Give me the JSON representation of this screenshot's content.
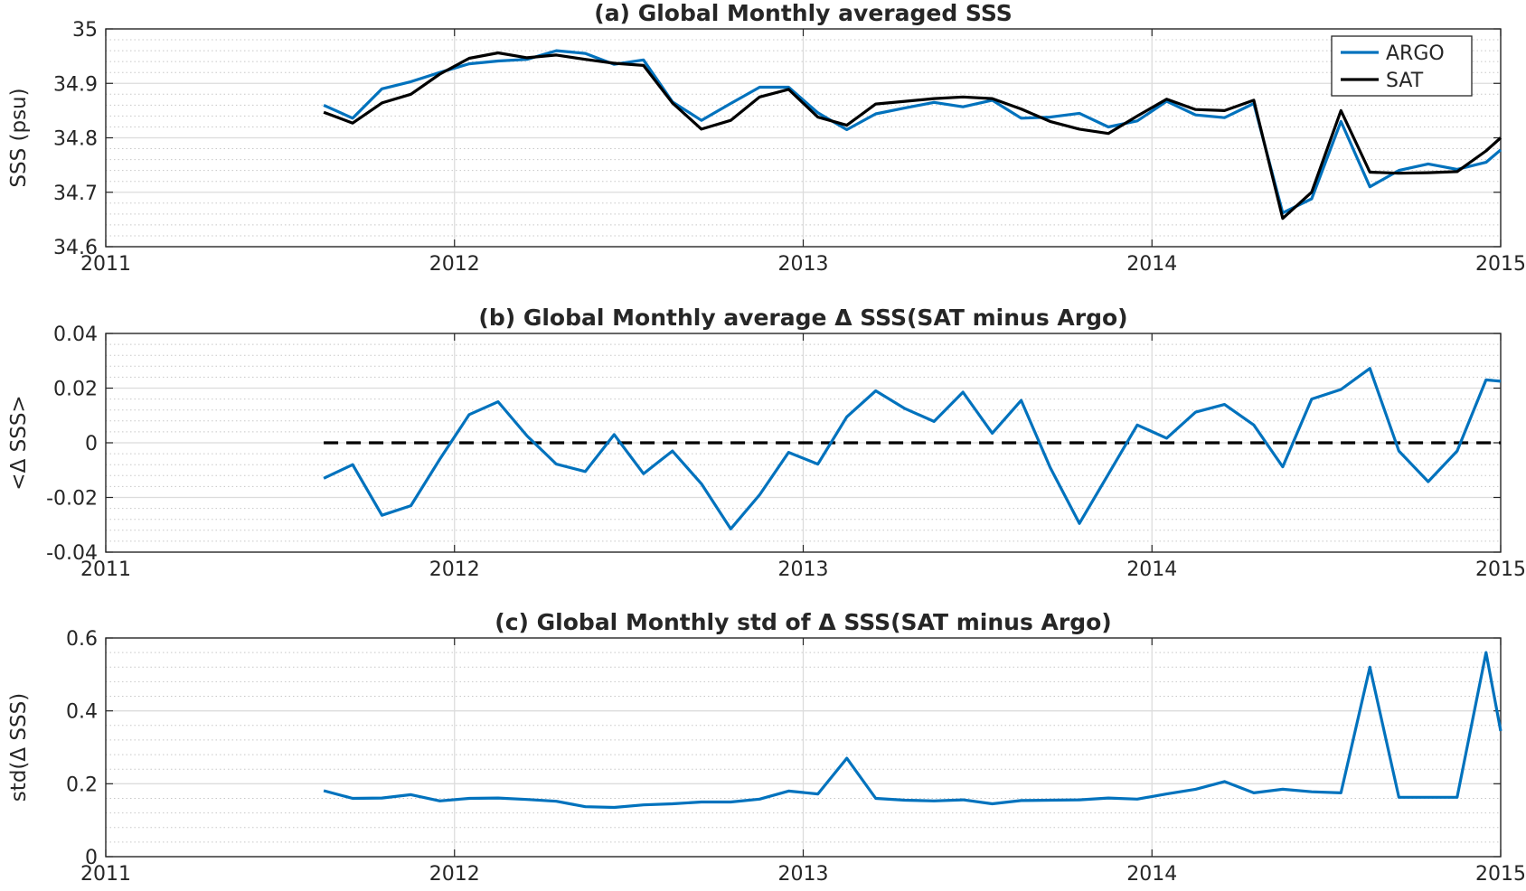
{
  "chart_data": [
    {
      "type": "line",
      "title": "(a) Global Monthly averaged SSS",
      "xlabel": "",
      "ylabel": "SSS (psu)",
      "xlim": [
        2011,
        2015
      ],
      "ylim": [
        34.6,
        35
      ],
      "xticks": [
        2011,
        2012,
        2013,
        2014,
        2015
      ],
      "yticks": [
        34.6,
        34.7,
        34.8,
        34.9,
        35
      ],
      "grid": true,
      "legend": "top-right",
      "series": [
        {
          "name": "ARGO",
          "color": "#0072BD",
          "x": [
            2011.625,
            2011.708,
            2011.792,
            2011.875,
            2011.958,
            2012.042,
            2012.125,
            2012.208,
            2012.292,
            2012.375,
            2012.458,
            2012.542,
            2012.625,
            2012.708,
            2012.792,
            2012.875,
            2012.958,
            2013.042,
            2013.125,
            2013.208,
            2013.292,
            2013.375,
            2013.458,
            2013.542,
            2013.625,
            2013.708,
            2013.792,
            2013.875,
            2013.958,
            2014.042,
            2014.125,
            2014.208,
            2014.292,
            2014.375,
            2014.458,
            2014.542,
            2014.625,
            2014.708,
            2014.792,
            2014.875,
            2014.958,
            2015.0
          ],
          "y": [
            34.86,
            34.836,
            34.89,
            34.903,
            34.92,
            34.936,
            34.941,
            34.944,
            34.96,
            34.955,
            34.935,
            34.943,
            34.866,
            34.832,
            34.863,
            34.893,
            34.893,
            34.846,
            34.815,
            34.844,
            34.855,
            34.865,
            34.857,
            34.869,
            34.836,
            34.838,
            34.845,
            34.82,
            34.831,
            34.867,
            34.842,
            34.837,
            34.863,
            34.662,
            34.688,
            34.83,
            34.71,
            34.74,
            34.752,
            34.742,
            34.755,
            34.778
          ]
        },
        {
          "name": "SAT",
          "color": "#000000",
          "x": [
            2011.625,
            2011.708,
            2011.792,
            2011.875,
            2011.958,
            2012.042,
            2012.125,
            2012.208,
            2012.292,
            2012.375,
            2012.458,
            2012.542,
            2012.625,
            2012.708,
            2012.792,
            2012.875,
            2012.958,
            2013.042,
            2013.125,
            2013.208,
            2013.292,
            2013.375,
            2013.458,
            2013.542,
            2013.625,
            2013.708,
            2013.792,
            2013.875,
            2013.958,
            2014.042,
            2014.125,
            2014.208,
            2014.292,
            2014.375,
            2014.458,
            2014.542,
            2014.625,
            2014.708,
            2014.792,
            2014.875,
            2014.958,
            2015.0
          ],
          "y": [
            34.847,
            34.827,
            34.864,
            34.88,
            34.917,
            34.946,
            34.956,
            34.947,
            34.952,
            34.944,
            34.937,
            34.933,
            34.864,
            34.816,
            34.832,
            34.875,
            34.889,
            34.838,
            34.823,
            34.862,
            34.867,
            34.872,
            34.875,
            34.872,
            34.853,
            34.83,
            34.816,
            34.808,
            34.84,
            34.871,
            34.852,
            34.85,
            34.869,
            34.652,
            34.7,
            34.85,
            34.737,
            34.735,
            34.736,
            34.738,
            34.776,
            34.8
          ]
        }
      ]
    },
    {
      "type": "line",
      "title": "(b) Global Monthly average Δ SSS(SAT minus Argo)",
      "xlabel": "",
      "ylabel": "<Δ SSS>",
      "xlim": [
        2011,
        2015
      ],
      "ylim": [
        -0.04,
        0.04
      ],
      "xticks": [
        2011,
        2012,
        2013,
        2014,
        2015
      ],
      "yticks": [
        -0.04,
        -0.02,
        0,
        0.02,
        0.04
      ],
      "grid": true,
      "zero_line": {
        "y": 0,
        "color": "#000000",
        "style": "dashed",
        "x_start": 2011.625,
        "x_end": 2015
      },
      "series": [
        {
          "color": "#0072BD",
          "x": [
            2011.625,
            2011.708,
            2011.792,
            2011.875,
            2011.958,
            2012.042,
            2012.125,
            2012.208,
            2012.292,
            2012.375,
            2012.458,
            2012.542,
            2012.625,
            2012.708,
            2012.792,
            2012.875,
            2012.958,
            2013.042,
            2013.125,
            2013.208,
            2013.292,
            2013.375,
            2013.458,
            2013.542,
            2013.625,
            2013.708,
            2013.792,
            2013.875,
            2013.958,
            2014.042,
            2014.125,
            2014.208,
            2014.292,
            2014.375,
            2014.458,
            2014.542,
            2014.625,
            2014.708,
            2014.792,
            2014.875,
            2014.958,
            2015.0
          ],
          "y": [
            -0.013,
            -0.008,
            -0.0265,
            -0.023,
            -0.006,
            0.0103,
            0.015,
            0.0025,
            -0.0078,
            -0.0105,
            0.003,
            -0.0113,
            -0.003,
            -0.015,
            -0.0315,
            -0.019,
            -0.0035,
            -0.0078,
            0.0095,
            0.019,
            0.0125,
            0.0078,
            0.0185,
            0.0035,
            0.0155,
            -0.009,
            -0.0295,
            -0.0115,
            0.0065,
            0.0017,
            0.0112,
            0.014,
            0.0065,
            -0.0088,
            0.016,
            0.0195,
            0.0272,
            -0.003,
            -0.0142,
            -0.003,
            0.023,
            0.0225
          ]
        }
      ]
    },
    {
      "type": "line",
      "title": "(c) Global Monthly std of Δ SSS(SAT minus Argo)",
      "xlabel": "",
      "ylabel": "std(Δ SSS)",
      "xlim": [
        2011,
        2015
      ],
      "ylim": [
        0,
        0.6
      ],
      "xticks": [
        2011,
        2012,
        2013,
        2014,
        2015
      ],
      "yticks": [
        0,
        0.2,
        0.4,
        0.6
      ],
      "grid": true,
      "series": [
        {
          "color": "#0072BD",
          "x": [
            2011.625,
            2011.708,
            2011.792,
            2011.875,
            2011.958,
            2012.042,
            2012.125,
            2012.208,
            2012.292,
            2012.375,
            2012.458,
            2012.542,
            2012.625,
            2012.708,
            2012.792,
            2012.875,
            2012.958,
            2013.042,
            2013.125,
            2013.208,
            2013.292,
            2013.375,
            2013.458,
            2013.542,
            2013.625,
            2013.708,
            2013.792,
            2013.875,
            2013.958,
            2014.042,
            2014.125,
            2014.208,
            2014.292,
            2014.375,
            2014.458,
            2014.542,
            2014.625,
            2014.708,
            2014.792,
            2014.875,
            2014.958,
            2015.0
          ],
          "y": [
            0.181,
            0.16,
            0.161,
            0.17,
            0.153,
            0.16,
            0.161,
            0.157,
            0.152,
            0.137,
            0.135,
            0.142,
            0.145,
            0.15,
            0.15,
            0.158,
            0.18,
            0.172,
            0.27,
            0.16,
            0.155,
            0.153,
            0.156,
            0.145,
            0.154,
            0.155,
            0.156,
            0.161,
            0.158,
            0.172,
            0.185,
            0.206,
            0.175,
            0.185,
            0.178,
            0.175,
            0.52,
            0.163,
            0.163,
            0.163,
            0.56,
            0.345
          ]
        }
      ]
    }
  ]
}
